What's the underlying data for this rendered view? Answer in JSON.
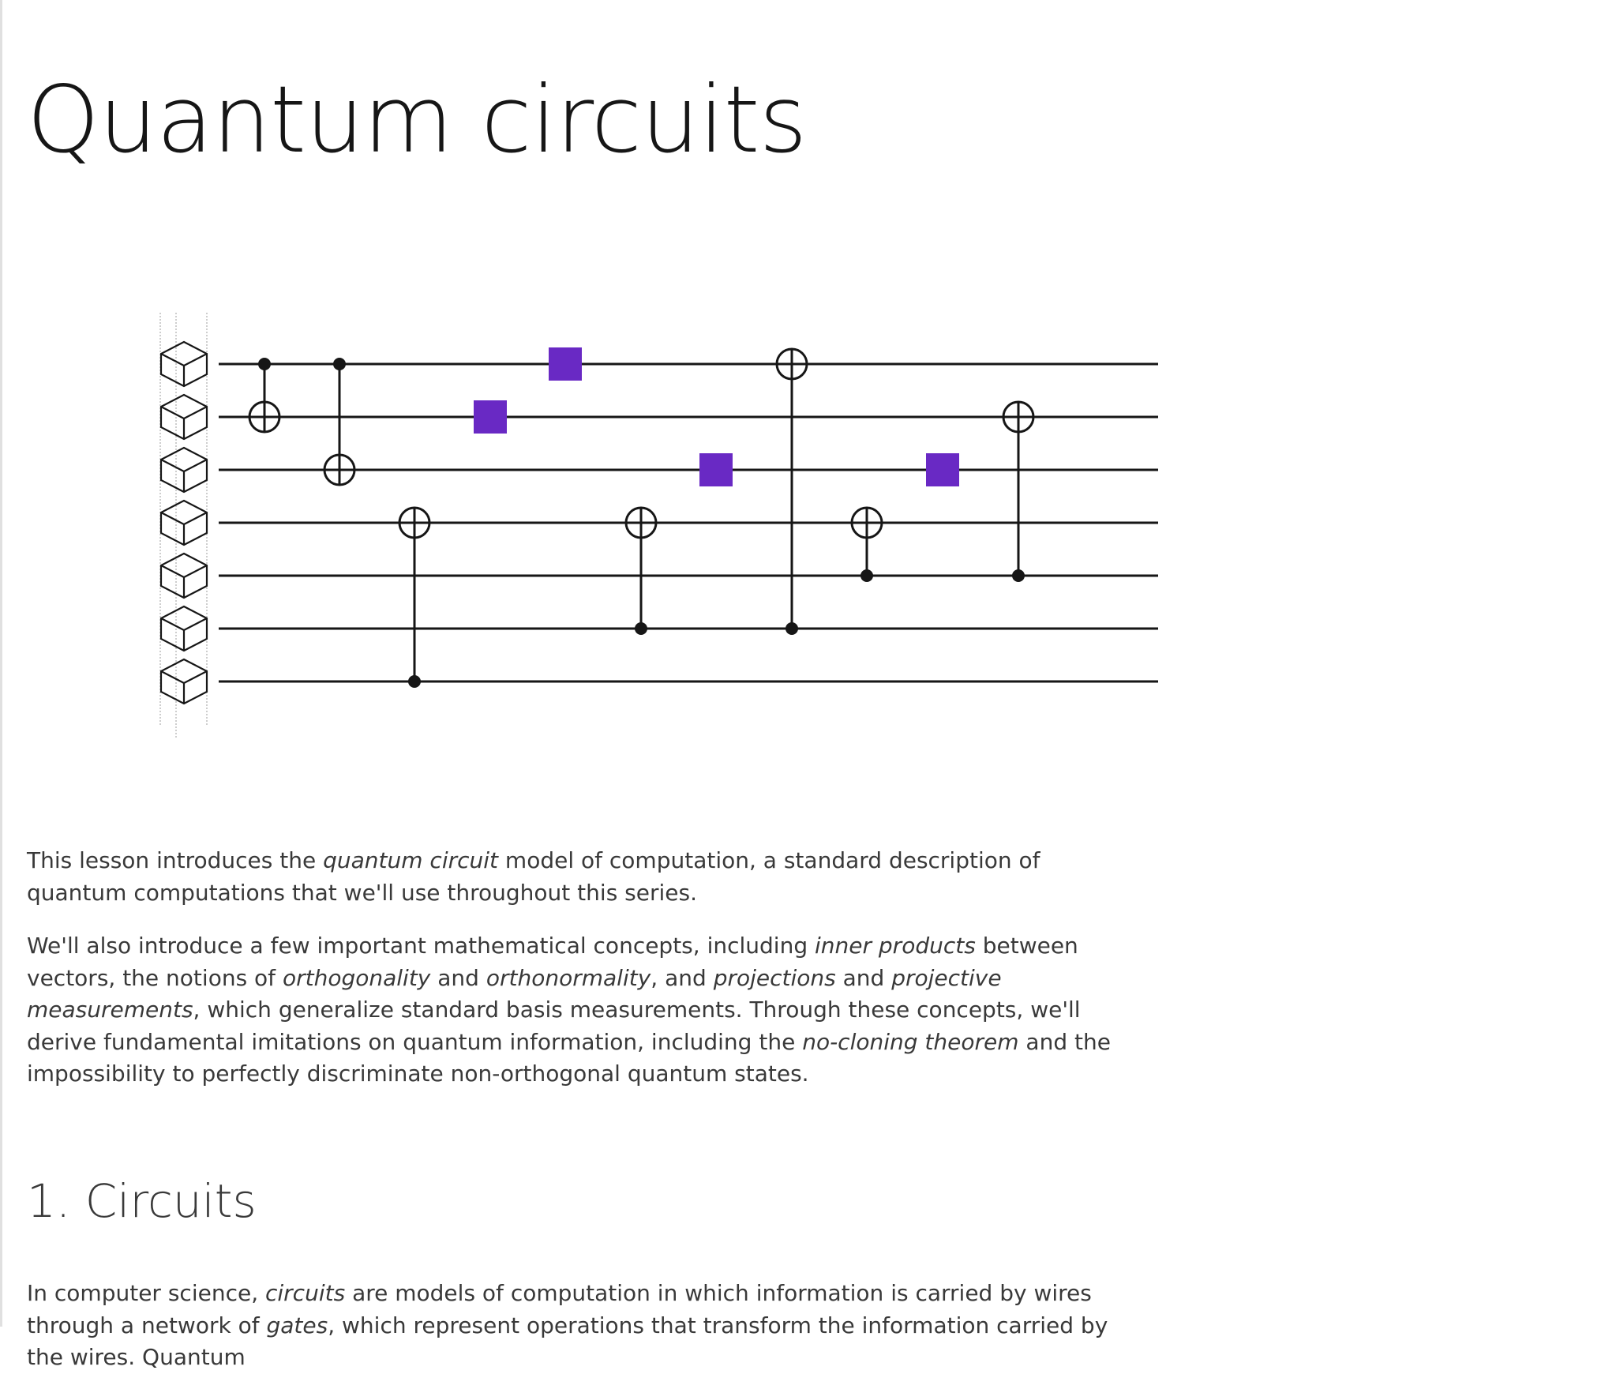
{
  "page": {
    "title": "Quantum circuits"
  },
  "figure": {
    "icon": "qubit-cube-icon",
    "wire_count": 7,
    "gate_color": "#6929c4",
    "gates": [
      {
        "kind": "cnot",
        "control": 1,
        "target": 2
      },
      {
        "kind": "cnot",
        "control": 1,
        "target": 3
      },
      {
        "kind": "cnot",
        "control": 7,
        "target": 4
      },
      {
        "kind": "single",
        "wire": 2
      },
      {
        "kind": "single",
        "wire": 1
      },
      {
        "kind": "cnot",
        "control": 6,
        "target": 4
      },
      {
        "kind": "single",
        "wire": 3
      },
      {
        "kind": "cnot",
        "control": 6,
        "target": 1
      },
      {
        "kind": "cnot",
        "control": 5,
        "target": 4
      },
      {
        "kind": "single",
        "wire": 3
      },
      {
        "kind": "cnot",
        "control": 5,
        "target": 2
      }
    ]
  },
  "intro": {
    "p1": {
      "t1": "This lesson introduces the ",
      "e1": "quantum circuit",
      "t2": " model of computation, a standard description of quantum computations that we'll use throughout this series."
    },
    "p2": {
      "t1": "We'll also introduce a few important mathematical concepts, including ",
      "e1": "inner products",
      "t2": " between vectors, the notions of ",
      "e2": "orthogonality",
      "t3": " and ",
      "e3": "orthonormality",
      "t4": ", and ",
      "e4": "projections",
      "t5": " and ",
      "e5": "projective measurements",
      "t6": ", which generalize standard basis measurements. Through these concepts, we'll derive fundamental imitations on quantum information, including the ",
      "e6": "no-cloning theorem",
      "t7": " and the impossibility to perfectly discriminate non-orthogonal quantum states."
    }
  },
  "section1": {
    "title": "1. Circuits",
    "p1": {
      "t1": "In computer science, ",
      "e1": "circuits",
      "t2": " are models of computation in which information is carried by wires through a network of ",
      "e2": "gates",
      "t3": ", which represent operations that transform the information carried by the wires. Quantum"
    }
  }
}
